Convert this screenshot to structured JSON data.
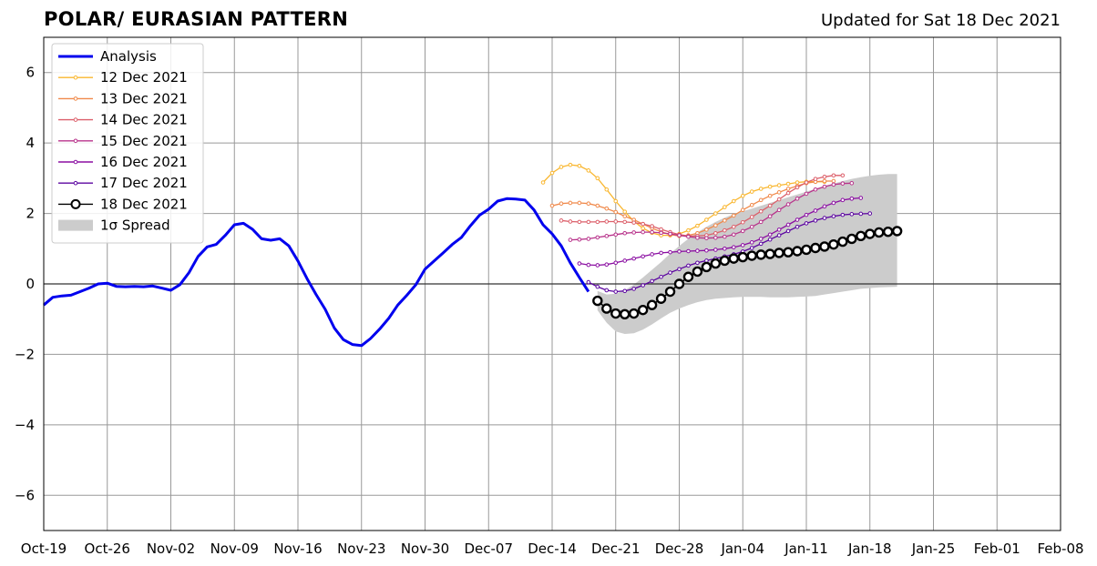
{
  "title": "POLAR/ EURASIAN  PATTERN",
  "updated": "Updated for Sat 18 Dec 2021",
  "colors": {
    "analysis": "#0000ee",
    "spread": "#cccccc",
    "grid": "#999999",
    "members": [
      "#f9b62e",
      "#f0894a",
      "#dc5f6a",
      "#b8338b",
      "#8b0fa2",
      "#5b04a0",
      "#000000"
    ]
  },
  "chart_data": {
    "type": "line",
    "title": "POLAR/ EURASIAN  PATTERN",
    "xlabel": "",
    "ylabel": "",
    "x_unit": "days since Oct-19",
    "xlim": [
      0,
      112
    ],
    "ylim": [
      -7,
      7
    ],
    "xticks": [
      {
        "day": 0,
        "label": "Oct-19"
      },
      {
        "day": 7,
        "label": "Oct-26"
      },
      {
        "day": 14,
        "label": "Nov-02"
      },
      {
        "day": 21,
        "label": "Nov-09"
      },
      {
        "day": 28,
        "label": "Nov-16"
      },
      {
        "day": 35,
        "label": "Nov-23"
      },
      {
        "day": 42,
        "label": "Nov-30"
      },
      {
        "day": 49,
        "label": "Dec-07"
      },
      {
        "day": 56,
        "label": "Dec-14"
      },
      {
        "day": 63,
        "label": "Dec-21"
      },
      {
        "day": 70,
        "label": "Dec-28"
      },
      {
        "day": 77,
        "label": "Jan-04"
      },
      {
        "day": 84,
        "label": "Jan-11"
      },
      {
        "day": 91,
        "label": "Jan-18"
      },
      {
        "day": 98,
        "label": "Jan-25"
      },
      {
        "day": 105,
        "label": "Feb-01"
      },
      {
        "day": 112,
        "label": "Feb-08"
      }
    ],
    "yticks": [
      {
        "value": 6,
        "label": "6"
      },
      {
        "value": 4,
        "label": "4"
      },
      {
        "value": 2,
        "label": "2"
      },
      {
        "value": 0,
        "label": "0"
      },
      {
        "value": -2,
        "label": "−2"
      },
      {
        "value": -4,
        "label": "−4"
      },
      {
        "value": -6,
        "label": "−6"
      }
    ],
    "grid": true,
    "legend_position": "top-left",
    "spread_label": "1σ Spread",
    "analysis": {
      "name": "Analysis",
      "start_day": 0,
      "values": [
        -0.6,
        -0.38,
        -0.34,
        -0.32,
        -0.22,
        -0.12,
        0.0,
        0.02,
        -0.07,
        -0.08,
        -0.07,
        -0.08,
        -0.06,
        -0.12,
        -0.18,
        -0.02,
        0.32,
        0.78,
        1.05,
        1.12,
        1.38,
        1.68,
        1.72,
        1.55,
        1.28,
        1.24,
        1.28,
        1.08,
        0.65,
        0.15,
        -0.3,
        -0.72,
        -1.25,
        -1.58,
        -1.72,
        -1.75,
        -1.55,
        -1.28,
        -0.98,
        -0.6,
        -0.32,
        -0.02,
        0.42,
        0.65,
        0.88,
        1.12,
        1.32,
        1.65,
        1.95,
        2.12,
        2.35,
        2.42,
        2.41,
        2.38,
        2.1,
        1.68,
        1.42,
        1.08,
        0.6,
        0.18,
        -0.22
      ]
    },
    "forecasts": [
      {
        "name": "12 Dec 2021",
        "start_day": 55,
        "values": [
          2.88,
          3.15,
          3.32,
          3.38,
          3.35,
          3.22,
          3.0,
          2.68,
          2.35,
          2.05,
          1.78,
          1.58,
          1.45,
          1.38,
          1.38,
          1.42,
          1.52,
          1.65,
          1.82,
          2.0,
          2.18,
          2.35,
          2.5,
          2.62,
          2.7,
          2.76,
          2.8,
          2.84,
          2.88,
          2.9,
          2.9,
          2.9
        ]
      },
      {
        "name": "13 Dec 2021",
        "start_day": 56,
        "values": [
          2.22,
          2.28,
          2.3,
          2.3,
          2.28,
          2.22,
          2.14,
          2.04,
          1.92,
          1.82,
          1.7,
          1.58,
          1.48,
          1.4,
          1.36,
          1.38,
          1.44,
          1.54,
          1.66,
          1.8,
          1.94,
          2.1,
          2.24,
          2.38,
          2.5,
          2.6,
          2.7,
          2.78,
          2.86,
          2.9,
          2.92,
          2.92
        ]
      },
      {
        "name": "14 Dec 2021",
        "start_day": 57,
        "values": [
          1.8,
          1.77,
          1.76,
          1.76,
          1.76,
          1.77,
          1.77,
          1.76,
          1.74,
          1.7,
          1.64,
          1.55,
          1.47,
          1.4,
          1.36,
          1.36,
          1.38,
          1.44,
          1.52,
          1.62,
          1.75,
          1.9,
          2.06,
          2.22,
          2.4,
          2.58,
          2.74,
          2.88,
          2.98,
          3.04,
          3.08,
          3.08
        ]
      },
      {
        "name": "15 Dec 2021",
        "start_day": 58,
        "values": [
          1.25,
          1.26,
          1.28,
          1.32,
          1.36,
          1.4,
          1.44,
          1.46,
          1.47,
          1.47,
          1.45,
          1.42,
          1.38,
          1.34,
          1.31,
          1.3,
          1.31,
          1.34,
          1.4,
          1.5,
          1.62,
          1.76,
          1.92,
          2.1,
          2.26,
          2.42,
          2.56,
          2.68,
          2.76,
          2.82,
          2.85,
          2.86
        ]
      },
      {
        "name": "16 Dec 2021",
        "start_day": 59,
        "values": [
          0.58,
          0.54,
          0.53,
          0.55,
          0.6,
          0.66,
          0.72,
          0.78,
          0.84,
          0.88,
          0.9,
          0.92,
          0.93,
          0.94,
          0.95,
          0.97,
          1.0,
          1.04,
          1.1,
          1.18,
          1.28,
          1.4,
          1.54,
          1.68,
          1.82,
          1.96,
          2.08,
          2.2,
          2.3,
          2.38,
          2.42,
          2.44
        ]
      },
      {
        "name": "17 Dec 2021",
        "start_day": 60,
        "values": [
          0.05,
          -0.08,
          -0.18,
          -0.22,
          -0.2,
          -0.14,
          -0.04,
          0.08,
          0.2,
          0.32,
          0.42,
          0.52,
          0.6,
          0.66,
          0.72,
          0.78,
          0.84,
          0.92,
          1.02,
          1.14,
          1.26,
          1.38,
          1.5,
          1.62,
          1.72,
          1.8,
          1.87,
          1.92,
          1.96,
          1.98,
          1.99,
          2.0
        ]
      },
      {
        "name": "18 Dec 2021",
        "start_day": 61,
        "values": [
          -0.48,
          -0.7,
          -0.84,
          -0.86,
          -0.84,
          -0.74,
          -0.6,
          -0.42,
          -0.22,
          0.0,
          0.2,
          0.35,
          0.48,
          0.58,
          0.66,
          0.72,
          0.76,
          0.8,
          0.83,
          0.85,
          0.88,
          0.9,
          0.93,
          0.97,
          1.02,
          1.06,
          1.12,
          1.2,
          1.28,
          1.36,
          1.42,
          1.46,
          1.48,
          1.5
        ]
      }
    ],
    "spread": {
      "start_day": 61,
      "upper": [
        -0.2,
        -0.3,
        -0.28,
        -0.18,
        -0.02,
        0.18,
        0.4,
        0.62,
        0.86,
        1.08,
        1.28,
        1.46,
        1.62,
        1.76,
        1.88,
        1.98,
        2.06,
        2.14,
        2.22,
        2.3,
        2.38,
        2.46,
        2.54,
        2.62,
        2.7,
        2.78,
        2.85,
        2.92,
        2.98,
        3.03,
        3.07,
        3.1,
        3.12,
        3.12
      ],
      "lower": [
        -0.75,
        -1.1,
        -1.35,
        -1.42,
        -1.4,
        -1.3,
        -1.15,
        -0.98,
        -0.82,
        -0.7,
        -0.6,
        -0.52,
        -0.46,
        -0.42,
        -0.4,
        -0.38,
        -0.37,
        -0.37,
        -0.37,
        -0.38,
        -0.38,
        -0.38,
        -0.37,
        -0.36,
        -0.34,
        -0.3,
        -0.26,
        -0.22,
        -0.18,
        -0.14,
        -0.12,
        -0.1,
        -0.09,
        -0.08
      ]
    }
  }
}
